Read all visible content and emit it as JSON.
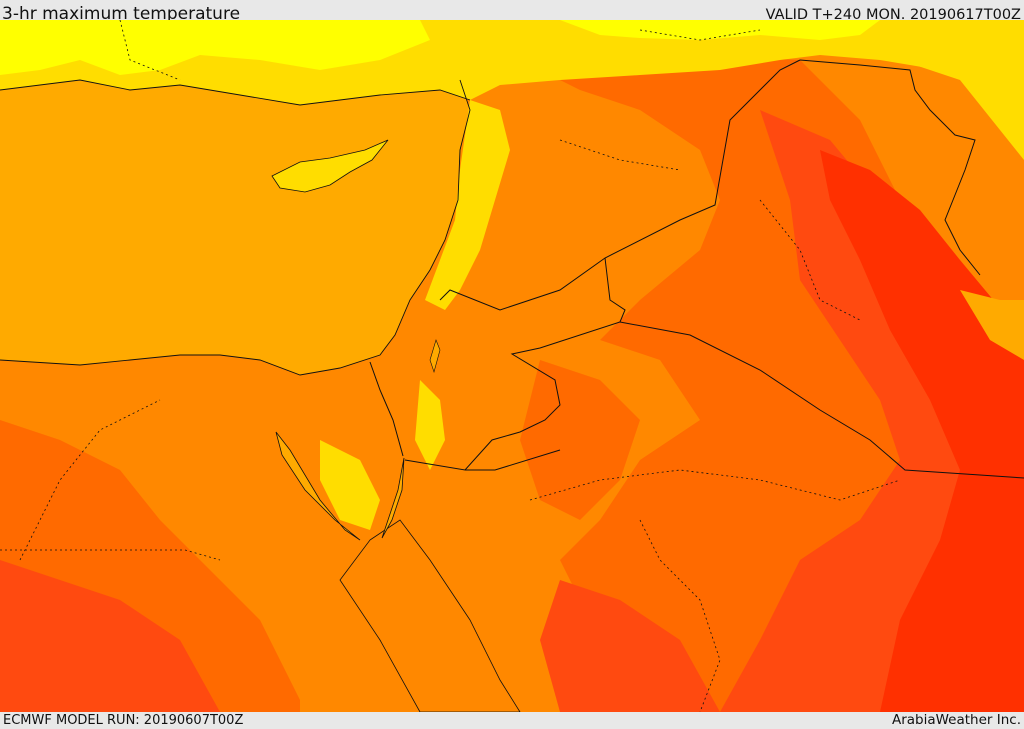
{
  "header": {
    "title": "3-hr maximum temperature",
    "valid_time": "VALID T+240 MON. 20190617T00Z"
  },
  "footer": {
    "model_run": "ECMWF MODEL RUN: 20190607T00Z",
    "credit": "ArabiaWeather Inc."
  },
  "colors": {
    "sea": "#ffaa00",
    "coolest": "#ffff00",
    "cool": "#ffdd00",
    "warm": "#ff8800",
    "hot": "#ff6a00",
    "hotter": "#ff4a10",
    "hottest": "#ff3000",
    "boundary": "#111111"
  }
}
